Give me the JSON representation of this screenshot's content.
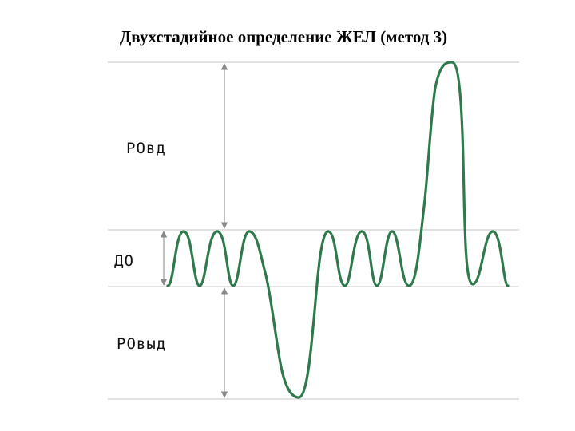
{
  "title": "Двухстадийное определение ЖЕЛ (метод 3)",
  "labels": {
    "rovd": "РОвд",
    "do": "ДО",
    "rovyd": "РОвыд"
  },
  "colors": {
    "curve": "#2f7a4c",
    "grid": "#d0d0d0",
    "dimension": "#9a9a9a",
    "text": "#000000"
  }
}
